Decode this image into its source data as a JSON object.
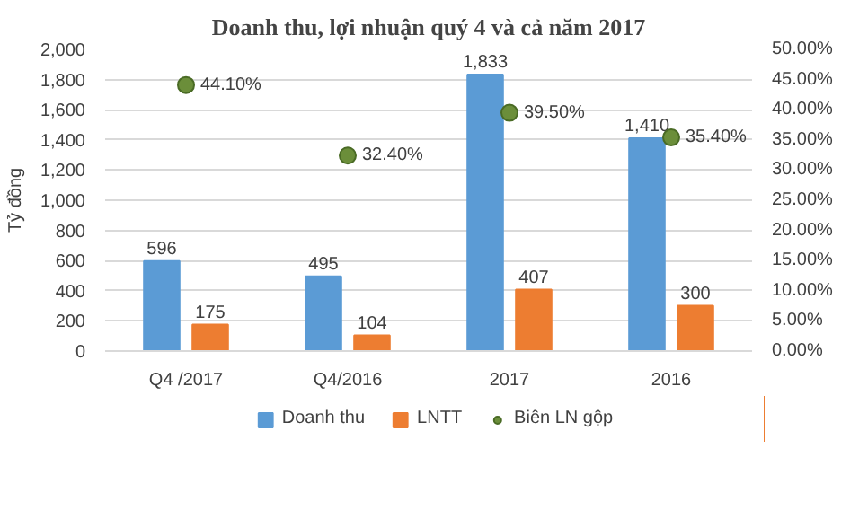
{
  "chart_data": {
    "type": "bar",
    "title": "Doanh thu, lợi nhuận quý 4 và cả năm 2017",
    "ylabel": "Tỷ đồng",
    "categories": [
      "Q4 /2017",
      "Q4/2016",
      "2017",
      "2016"
    ],
    "series": [
      {
        "name": "Doanh thu",
        "color": "#5b9bd5",
        "values": [
          596,
          495,
          1833,
          1410
        ],
        "value_labels": [
          "596",
          "495",
          "1,833",
          "1,410"
        ]
      },
      {
        "name": "LNTT",
        "color": "#ed7d31",
        "values": [
          175,
          104,
          407,
          300
        ],
        "value_labels": [
          "175",
          "104",
          "407",
          "300"
        ]
      },
      {
        "name": "Biên LN gộp",
        "type": "scatter",
        "axis": "y2",
        "color": "#6b8e3a",
        "values": [
          44.1,
          32.4,
          39.5,
          35.4
        ],
        "value_labels": [
          "44.10%",
          "32.40%",
          "39.50%",
          "35.40%"
        ]
      }
    ],
    "ylim": [
      0,
      2000
    ],
    "yticks": [
      0,
      200,
      400,
      600,
      800,
      {
        "value": 1000,
        "label": "1,000"
      },
      {
        "value": 1200,
        "label": "1,200"
      },
      {
        "value": 1400,
        "label": "1,400"
      },
      {
        "value": 1600,
        "label": "1,600"
      },
      {
        "value": 1800,
        "label": "1,800"
      },
      {
        "value": 2000,
        "label": "2,000"
      }
    ],
    "y2lim": [
      0,
      50
    ],
    "y2ticks": [
      {
        "value": 0,
        "label": "0.00%"
      },
      {
        "value": 5,
        "label": "5.00%"
      },
      {
        "value": 10,
        "label": "10.00%"
      },
      {
        "value": 15,
        "label": "15.00%"
      },
      {
        "value": 20,
        "label": "20.00%"
      },
      {
        "value": 25,
        "label": "25.00%"
      },
      {
        "value": 30,
        "label": "30.00%"
      },
      {
        "value": 35,
        "label": "35.00%"
      },
      {
        "value": 40,
        "label": "40.00%"
      },
      {
        "value": 45,
        "label": "45.00%"
      },
      {
        "value": 50,
        "label": "50.00%"
      }
    ],
    "grid": "y",
    "legend": "bottom",
    "marker": "circle"
  }
}
